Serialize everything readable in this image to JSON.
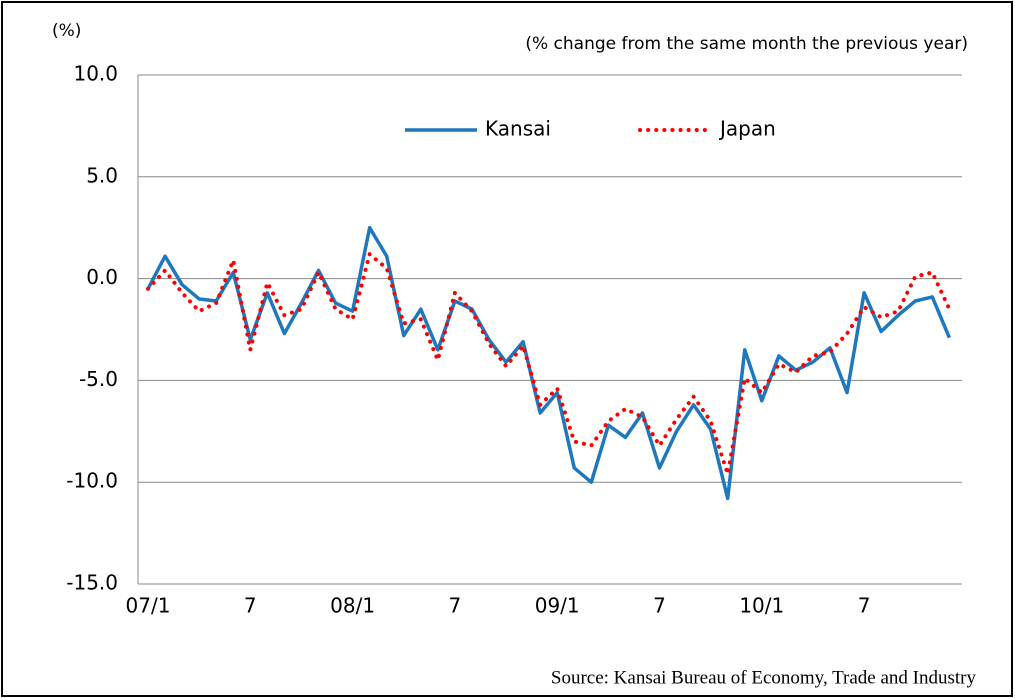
{
  "chart_data": {
    "type": "line",
    "ylabel": "(%)",
    "subtitle": "(% change from the same month the previous year)",
    "source": "Source: Kansai Bureau of Economy, Trade and Industry",
    "categories": [
      "07/1",
      null,
      null,
      null,
      null,
      null,
      "7",
      null,
      null,
      null,
      null,
      null,
      "08/1",
      null,
      null,
      null,
      null,
      null,
      "7",
      null,
      null,
      null,
      null,
      null,
      "09/1",
      null,
      null,
      null,
      null,
      null,
      "7",
      null,
      null,
      null,
      null,
      null,
      "10/1",
      null,
      null,
      null,
      null,
      null,
      "7",
      null,
      null,
      null,
      null,
      null
    ],
    "series": [
      {
        "name": "Kansai",
        "color": "#1f77bd",
        "style": "solid",
        "values": [
          -0.5,
          1.1,
          -0.3,
          -1.0,
          -1.1,
          0.3,
          -3.0,
          -0.7,
          -2.7,
          -1.2,
          0.4,
          -1.2,
          -1.6,
          2.5,
          1.1,
          -2.8,
          -1.5,
          -3.5,
          -1.1,
          -1.5,
          -3.0,
          -4.1,
          -3.1,
          -6.6,
          -5.6,
          -9.3,
          -10.0,
          -7.2,
          -7.8,
          -6.6,
          -9.3,
          -7.5,
          -6.2,
          -7.4,
          -10.8,
          -3.5,
          -6.0,
          -3.8,
          -4.5,
          -4.1,
          -3.4,
          -5.6,
          -0.7,
          -2.6,
          -1.8,
          -1.1,
          -0.9,
          -2.9
        ]
      },
      {
        "name": "Japan",
        "color": "#ff0000",
        "style": "dotted",
        "values": [
          -0.5,
          0.4,
          -0.7,
          -1.6,
          -1.2,
          0.9,
          -3.5,
          -0.2,
          -1.8,
          -1.5,
          0.3,
          -1.5,
          -2.0,
          1.2,
          0.5,
          -2.2,
          -2.0,
          -4.0,
          -0.7,
          -1.6,
          -3.2,
          -4.3,
          -3.3,
          -6.2,
          -5.4,
          -8.0,
          -8.2,
          -7.0,
          -6.4,
          -6.8,
          -8.2,
          -6.9,
          -5.8,
          -7.0,
          -9.6,
          -4.9,
          -5.6,
          -4.2,
          -4.6,
          -3.8,
          -3.6,
          -2.7,
          -1.4,
          -1.9,
          -1.6,
          0.1,
          0.3,
          -1.5
        ]
      }
    ],
    "ylim": [
      -15,
      10
    ],
    "yticks": [
      {
        "value": -15,
        "label": "-15.0"
      },
      {
        "value": -10,
        "label": "-10.0"
      },
      {
        "value": -5,
        "label": "-5.0"
      },
      {
        "value": 0,
        "label": "0.0"
      },
      {
        "value": 5,
        "label": "5.0"
      },
      {
        "value": 10,
        "label": "10.0"
      }
    ],
    "grid": true
  }
}
